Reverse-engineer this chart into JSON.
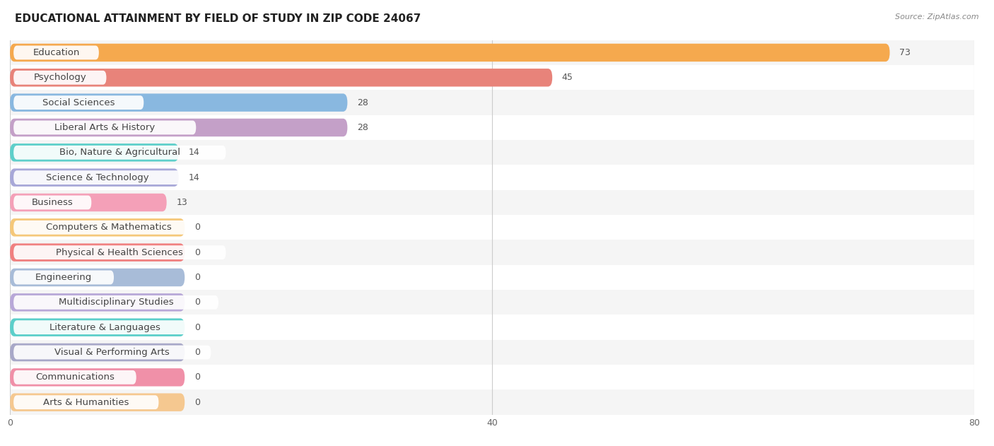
{
  "title": "EDUCATIONAL ATTAINMENT BY FIELD OF STUDY IN ZIP CODE 24067",
  "source": "Source: ZipAtlas.com",
  "categories": [
    "Education",
    "Psychology",
    "Social Sciences",
    "Liberal Arts & History",
    "Bio, Nature & Agricultural",
    "Science & Technology",
    "Business",
    "Computers & Mathematics",
    "Physical & Health Sciences",
    "Engineering",
    "Multidisciplinary Studies",
    "Literature & Languages",
    "Visual & Performing Arts",
    "Communications",
    "Arts & Humanities"
  ],
  "values": [
    73,
    45,
    28,
    28,
    14,
    14,
    13,
    0,
    0,
    0,
    0,
    0,
    0,
    0,
    0
  ],
  "bar_colors": [
    "#F5A94E",
    "#E8837A",
    "#89B8E0",
    "#C4A0C8",
    "#5ECFCA",
    "#A8A8D8",
    "#F4A0B8",
    "#F5C87A",
    "#F08080",
    "#A8BCD8",
    "#B8A8D8",
    "#5CCFCA",
    "#A8A8C8",
    "#F090A8",
    "#F5C890"
  ],
  "xlim": [
    0,
    80
  ],
  "xticks": [
    0,
    40,
    80
  ],
  "bar_height": 0.72,
  "background_color": "#ffffff",
  "row_alt_color": "#f0f0f0",
  "title_fontsize": 11,
  "label_fontsize": 9.5,
  "value_fontsize": 9
}
